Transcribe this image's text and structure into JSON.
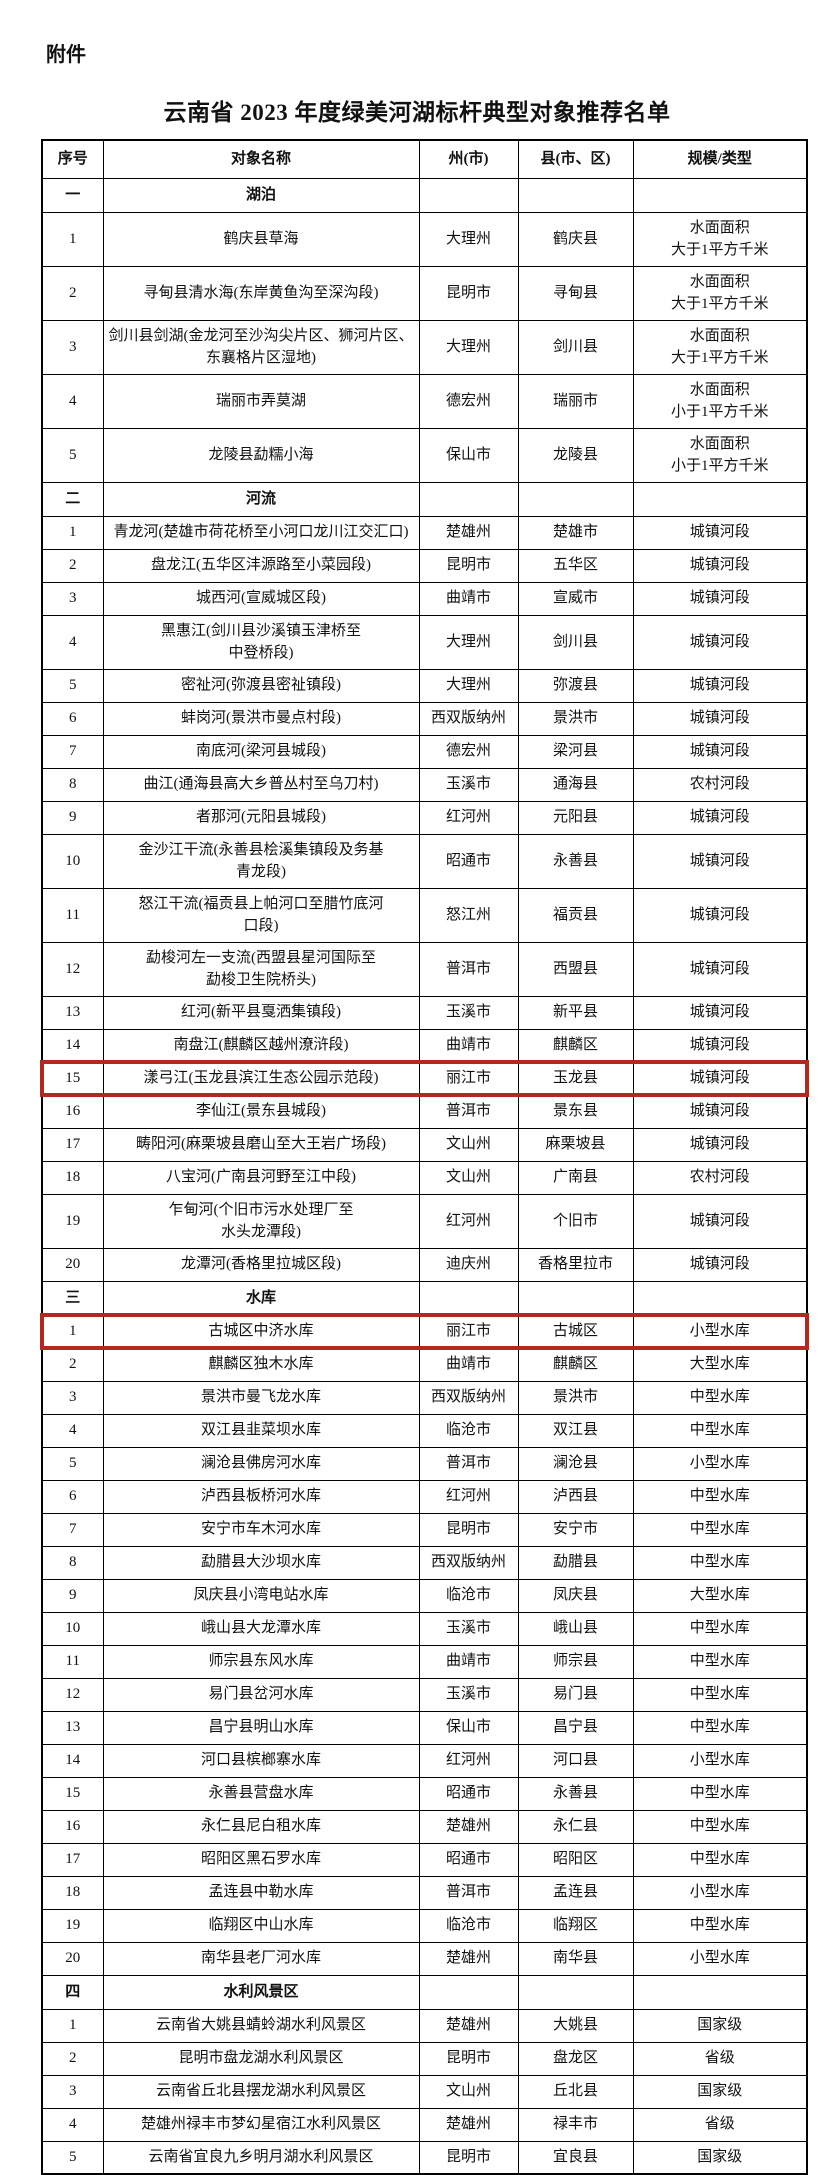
{
  "attachment_label": "附件",
  "title": "云南省 2023 年度绿美河湖标杆典型对象推荐名单",
  "table": {
    "highlight_color": "#b5281d",
    "headers": [
      "序号",
      "对象名称",
      "州(市)",
      "县(市、区)",
      "规模/类型"
    ],
    "sections": [
      {
        "index": "一",
        "name": "湖泊",
        "rows": [
          {
            "no": "1",
            "name": "鹤庆县草海",
            "prefecture": "大理州",
            "county": "鹤庆县",
            "type": "水面面积\n大于1平方千米"
          },
          {
            "no": "2",
            "name": "寻甸县清水海(东岸黄鱼沟至深沟段)",
            "prefecture": "昆明市",
            "county": "寻甸县",
            "type": "水面面积\n大于1平方千米"
          },
          {
            "no": "3",
            "name": "剑川县剑湖(金龙河至沙沟尖片区、狮河片区、东襄格片区湿地)",
            "prefecture": "大理州",
            "county": "剑川县",
            "type": "水面面积\n大于1平方千米"
          },
          {
            "no": "4",
            "name": "瑞丽市弄莫湖",
            "prefecture": "德宏州",
            "county": "瑞丽市",
            "type": "水面面积\n小于1平方千米"
          },
          {
            "no": "5",
            "name": "龙陵县勐糯小海",
            "prefecture": "保山市",
            "county": "龙陵县",
            "type": "水面面积\n小于1平方千米"
          }
        ]
      },
      {
        "index": "二",
        "name": "河流",
        "rows": [
          {
            "no": "1",
            "name": "青龙河(楚雄市荷花桥至小河口龙川江交汇口)",
            "prefecture": "楚雄州",
            "county": "楚雄市",
            "type": "城镇河段"
          },
          {
            "no": "2",
            "name": "盘龙江(五华区沣源路至小菜园段)",
            "prefecture": "昆明市",
            "county": "五华区",
            "type": "城镇河段"
          },
          {
            "no": "3",
            "name": "城西河(宣威城区段)",
            "prefecture": "曲靖市",
            "county": "宣威市",
            "type": "城镇河段"
          },
          {
            "no": "4",
            "name": "黑惠江(剑川县沙溪镇玉津桥至\n中登桥段)",
            "prefecture": "大理州",
            "county": "剑川县",
            "type": "城镇河段"
          },
          {
            "no": "5",
            "name": "密祉河(弥渡县密祉镇段)",
            "prefecture": "大理州",
            "county": "弥渡县",
            "type": "城镇河段"
          },
          {
            "no": "6",
            "name": "蚌岗河(景洪市曼点村段)",
            "prefecture": "西双版纳州",
            "county": "景洪市",
            "type": "城镇河段"
          },
          {
            "no": "7",
            "name": "南底河(梁河县城段)",
            "prefecture": "德宏州",
            "county": "梁河县",
            "type": "城镇河段"
          },
          {
            "no": "8",
            "name": "曲江(通海县高大乡普丛村至乌刀村)",
            "prefecture": "玉溪市",
            "county": "通海县",
            "type": "农村河段"
          },
          {
            "no": "9",
            "name": "者那河(元阳县城段)",
            "prefecture": "红河州",
            "county": "元阳县",
            "type": "城镇河段"
          },
          {
            "no": "10",
            "name": "金沙江干流(永善县桧溪集镇段及务基\n青龙段)",
            "prefecture": "昭通市",
            "county": "永善县",
            "type": "城镇河段"
          },
          {
            "no": "11",
            "name": "怒江干流(福贡县上帕河口至腊竹底河\n口段)",
            "prefecture": "怒江州",
            "county": "福贡县",
            "type": "城镇河段"
          },
          {
            "no": "12",
            "name": "勐梭河左一支流(西盟县星河国际至\n勐梭卫生院桥头)",
            "prefecture": "普洱市",
            "county": "西盟县",
            "type": "城镇河段"
          },
          {
            "no": "13",
            "name": "红河(新平县戛洒集镇段)",
            "prefecture": "玉溪市",
            "county": "新平县",
            "type": "城镇河段"
          },
          {
            "no": "14",
            "name": "南盘江(麒麟区越州潦浒段)",
            "prefecture": "曲靖市",
            "county": "麒麟区",
            "type": "城镇河段"
          },
          {
            "no": "15",
            "name": "漾弓江(玉龙县滨江生态公园示范段)",
            "prefecture": "丽江市",
            "county": "玉龙县",
            "type": "城镇河段",
            "highlight": true
          },
          {
            "no": "16",
            "name": "李仙江(景东县城段)",
            "prefecture": "普洱市",
            "county": "景东县",
            "type": "城镇河段"
          },
          {
            "no": "17",
            "name": "畴阳河(麻栗坡县磨山至大王岩广场段)",
            "prefecture": "文山州",
            "county": "麻栗坡县",
            "type": "城镇河段"
          },
          {
            "no": "18",
            "name": "八宝河(广南县河野至江中段)",
            "prefecture": "文山州",
            "county": "广南县",
            "type": "农村河段"
          },
          {
            "no": "19",
            "name": "乍甸河(个旧市污水处理厂至\n水头龙潭段)",
            "prefecture": "红河州",
            "county": "个旧市",
            "type": "城镇河段"
          },
          {
            "no": "20",
            "name": "龙潭河(香格里拉城区段)",
            "prefecture": "迪庆州",
            "county": "香格里拉市",
            "type": "城镇河段"
          }
        ]
      },
      {
        "index": "三",
        "name": "水库",
        "rows": [
          {
            "no": "1",
            "name": "古城区中济水库",
            "prefecture": "丽江市",
            "county": "古城区",
            "type": "小型水库",
            "highlight": true
          },
          {
            "no": "2",
            "name": "麒麟区独木水库",
            "prefecture": "曲靖市",
            "county": "麒麟区",
            "type": "大型水库"
          },
          {
            "no": "3",
            "name": "景洪市曼飞龙水库",
            "prefecture": "西双版纳州",
            "county": "景洪市",
            "type": "中型水库"
          },
          {
            "no": "4",
            "name": "双江县韭菜坝水库",
            "prefecture": "临沧市",
            "county": "双江县",
            "type": "中型水库"
          },
          {
            "no": "5",
            "name": "澜沧县佛房河水库",
            "prefecture": "普洱市",
            "county": "澜沧县",
            "type": "小型水库"
          },
          {
            "no": "6",
            "name": "泸西县板桥河水库",
            "prefecture": "红河州",
            "county": "泸西县",
            "type": "中型水库"
          },
          {
            "no": "7",
            "name": "安宁市车木河水库",
            "prefecture": "昆明市",
            "county": "安宁市",
            "type": "中型水库"
          },
          {
            "no": "8",
            "name": "勐腊县大沙坝水库",
            "prefecture": "西双版纳州",
            "county": "勐腊县",
            "type": "中型水库"
          },
          {
            "no": "9",
            "name": "凤庆县小湾电站水库",
            "prefecture": "临沧市",
            "county": "凤庆县",
            "type": "大型水库"
          },
          {
            "no": "10",
            "name": "峨山县大龙潭水库",
            "prefecture": "玉溪市",
            "county": "峨山县",
            "type": "中型水库"
          },
          {
            "no": "11",
            "name": "师宗县东风水库",
            "prefecture": "曲靖市",
            "county": "师宗县",
            "type": "中型水库"
          },
          {
            "no": "12",
            "name": "易门县岔河水库",
            "prefecture": "玉溪市",
            "county": "易门县",
            "type": "中型水库"
          },
          {
            "no": "13",
            "name": "昌宁县明山水库",
            "prefecture": "保山市",
            "county": "昌宁县",
            "type": "中型水库"
          },
          {
            "no": "14",
            "name": "河口县槟榔寨水库",
            "prefecture": "红河州",
            "county": "河口县",
            "type": "小型水库"
          },
          {
            "no": "15",
            "name": "永善县营盘水库",
            "prefecture": "昭通市",
            "county": "永善县",
            "type": "中型水库"
          },
          {
            "no": "16",
            "name": "永仁县尼白租水库",
            "prefecture": "楚雄州",
            "county": "永仁县",
            "type": "中型水库"
          },
          {
            "no": "17",
            "name": "昭阳区黑石罗水库",
            "prefecture": "昭通市",
            "county": "昭阳区",
            "type": "中型水库"
          },
          {
            "no": "18",
            "name": "孟连县中勒水库",
            "prefecture": "普洱市",
            "county": "孟连县",
            "type": "小型水库"
          },
          {
            "no": "19",
            "name": "临翔区中山水库",
            "prefecture": "临沧市",
            "county": "临翔区",
            "type": "中型水库"
          },
          {
            "no": "20",
            "name": "南华县老厂河水库",
            "prefecture": "楚雄州",
            "county": "南华县",
            "type": "小型水库"
          }
        ]
      },
      {
        "index": "四",
        "name": "水利风景区",
        "rows": [
          {
            "no": "1",
            "name": "云南省大姚县蜻蛉湖水利风景区",
            "prefecture": "楚雄州",
            "county": "大姚县",
            "type": "国家级"
          },
          {
            "no": "2",
            "name": "昆明市盘龙湖水利风景区",
            "prefecture": "昆明市",
            "county": "盘龙区",
            "type": "省级"
          },
          {
            "no": "3",
            "name": "云南省丘北县摆龙湖水利风景区",
            "prefecture": "文山州",
            "county": "丘北县",
            "type": "国家级"
          },
          {
            "no": "4",
            "name": "楚雄州禄丰市梦幻星宿江水利风景区",
            "prefecture": "楚雄州",
            "county": "禄丰市",
            "type": "省级"
          },
          {
            "no": "5",
            "name": "云南省宜良九乡明月湖水利风景区",
            "prefecture": "昆明市",
            "county": "宜良县",
            "type": "国家级"
          }
        ]
      }
    ]
  }
}
